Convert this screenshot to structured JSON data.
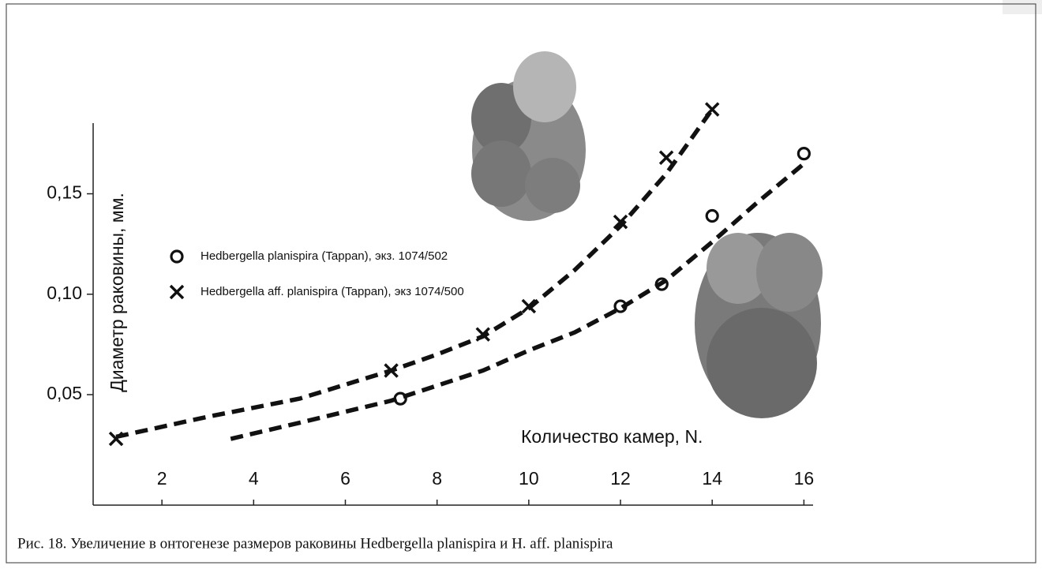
{
  "chart_data": {
    "type": "scatter",
    "ylabel": "Диаметр раковины, мм.",
    "xlabel": "Количество камер, N.",
    "xlim": [
      0.5,
      16.2
    ],
    "xticks": [
      2,
      4,
      6,
      8,
      10,
      12,
      14,
      16
    ],
    "ylim": [
      -0.005,
      0.195
    ],
    "yticks": [
      {
        "value": 0.05,
        "label": "0,05"
      },
      {
        "value": 0.1,
        "label": "0,10"
      },
      {
        "value": 0.15,
        "label": "0,15"
      }
    ],
    "series": [
      {
        "name": "Hedbergella planispira (Tappan), экз. 1074/502",
        "marker": "circle",
        "color": "#111111",
        "x": [
          7.2,
          12,
          12.9,
          14,
          16
        ],
        "values": [
          0.048,
          0.094,
          0.105,
          0.139,
          0.17
        ],
        "trend": {
          "x": [
            3.5,
            5,
            7,
            9,
            10,
            11,
            12,
            13,
            14,
            15,
            16
          ],
          "values": [
            0.028,
            0.036,
            0.047,
            0.062,
            0.072,
            0.081,
            0.093,
            0.107,
            0.126,
            0.146,
            0.165
          ]
        }
      },
      {
        "name": "Hedbergella aff. planispira (Tappan), экз 1074/500",
        "marker": "cross",
        "color": "#111111",
        "x": [
          1,
          7,
          9,
          10,
          12,
          13,
          14
        ],
        "values": [
          0.028,
          0.062,
          0.08,
          0.094,
          0.136,
          0.168,
          0.192
        ],
        "trend": {
          "x": [
            1,
            3,
            5,
            7,
            8,
            9,
            10,
            11,
            12,
            13,
            14
          ],
          "values": [
            0.029,
            0.039,
            0.048,
            0.062,
            0.07,
            0.079,
            0.093,
            0.112,
            0.134,
            0.16,
            0.192
          ]
        }
      }
    ]
  },
  "caption": "Рис. 18. Увеличение в онтогенезе размеров раковины Hedbergella planispira и H. aff. planispira"
}
